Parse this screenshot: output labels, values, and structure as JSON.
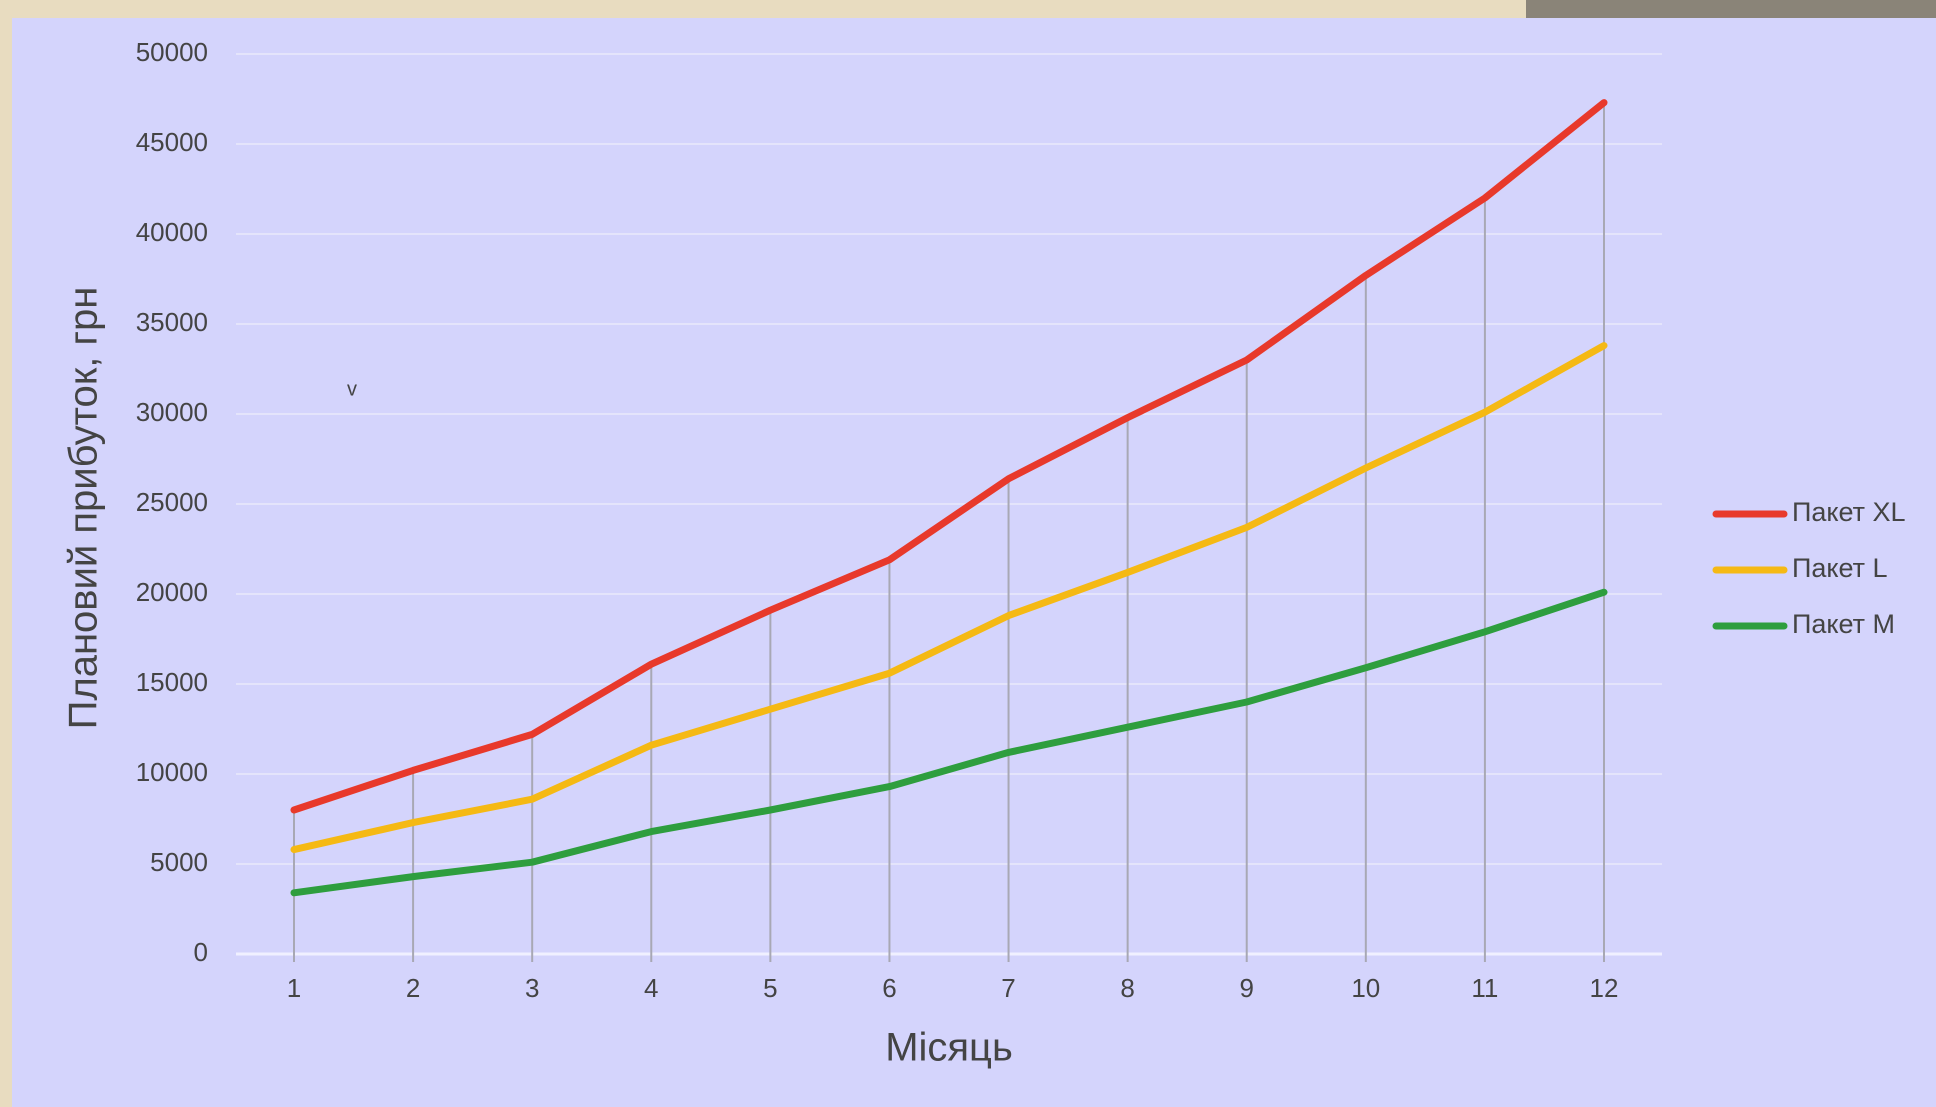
{
  "chart_data": {
    "type": "line",
    "annotations": [
      "v"
    ],
    "x_label": "Місяць",
    "y_label": "Плановий прибуток, грн",
    "categories": [
      "1",
      "2",
      "3",
      "4",
      "5",
      "6",
      "7",
      "8",
      "9",
      "10",
      "11",
      "12"
    ],
    "series": [
      {
        "name": "Пакет XL",
        "color": "#e8392b",
        "values": [
          8000,
          10200,
          12200,
          16100,
          19100,
          21900,
          26400,
          29800,
          33000,
          37700,
          42000,
          47300
        ]
      },
      {
        "name": "Пакет L",
        "color": "#f5b914",
        "values": [
          5800,
          7300,
          8600,
          11600,
          13600,
          15600,
          18800,
          21200,
          23700,
          27000,
          30100,
          33800
        ]
      },
      {
        "name": "Пакет M",
        "color": "#2e9e3e",
        "values": [
          3400,
          4300,
          5100,
          6800,
          8000,
          9300,
          11200,
          12600,
          14000,
          15900,
          17900,
          20100
        ]
      }
    ],
    "ylim": [
      0,
      50000
    ],
    "yticks": [
      0,
      5000,
      10000,
      15000,
      20000,
      25000,
      30000,
      35000,
      40000,
      45000,
      50000
    ],
    "grid": true,
    "drop_lines": true,
    "legend": "right"
  }
}
